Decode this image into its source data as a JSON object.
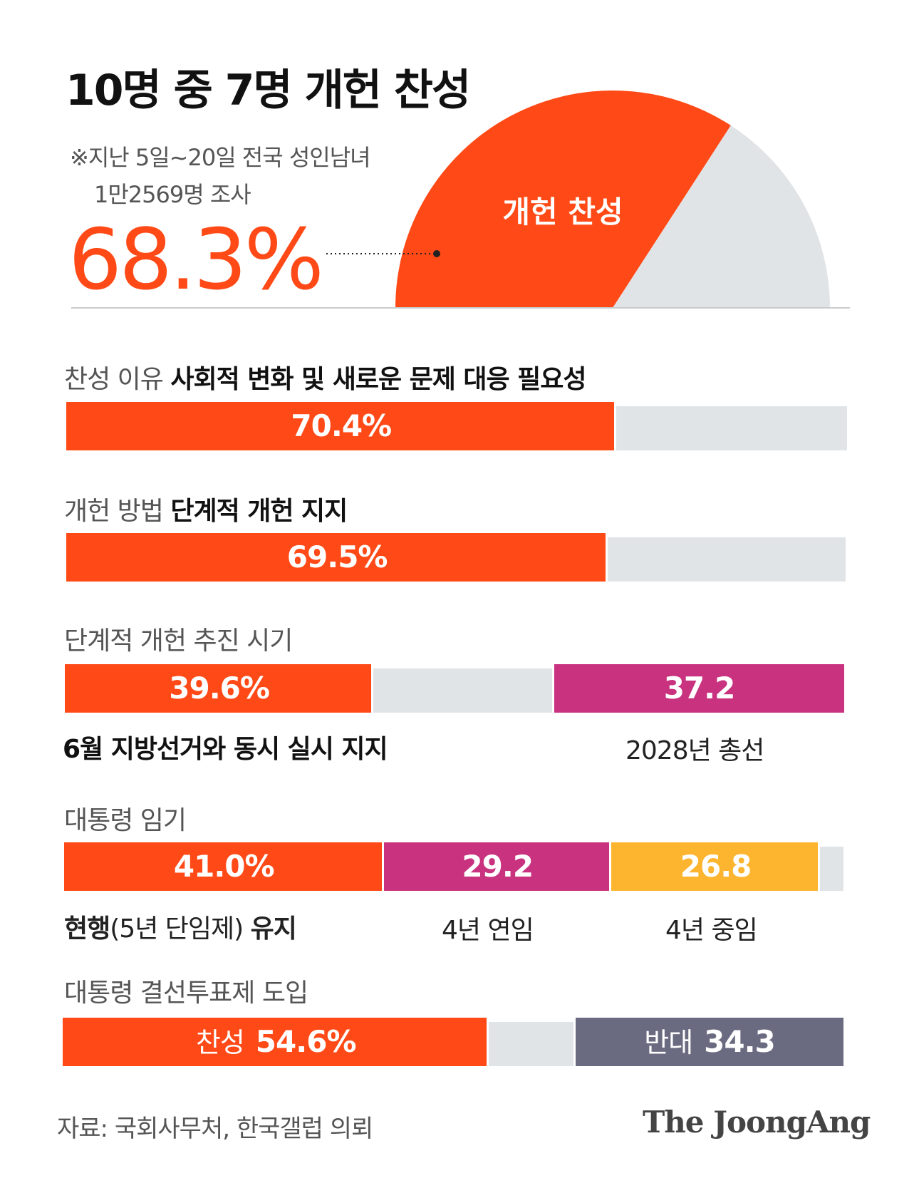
{
  "title": "10명 중 7명 개헌 찬성",
  "note_line1": "※지난 5일~20일 전국 성인남녀",
  "note_line2": "1만2569명 조사",
  "colors": {
    "orange": "#ff4a17",
    "gray": "#e1e4e7",
    "magenta": "#c8327f",
    "yellow": "#fdb52f",
    "slate": "#6a6b80"
  },
  "chart_data": [
    {
      "type": "pie",
      "subtype": "half-donut gauge",
      "title": "10명 중 7명 개헌 찬성",
      "slices": [
        {
          "label": "개헌 찬성",
          "value": 68.3,
          "display": "68.3%",
          "color": "#ff4a17"
        },
        {
          "label": "",
          "value": 31.7,
          "color": "#e1e4e7"
        }
      ]
    },
    {
      "type": "bar",
      "stacked": true,
      "orientation": "horizontal",
      "sections": [
        {
          "label_prefix": "찬성 이유",
          "label_bold": "사회적 변화 및 새로운 문제 대응 필요성",
          "segments": [
            {
              "value": 70.4,
              "display": "70.4%",
              "color": "#ff4a17",
              "caption": ""
            },
            {
              "value": 29.6,
              "display": "",
              "color": "#e1e4e7",
              "caption": ""
            }
          ]
        },
        {
          "label_prefix": "개헌 방법",
          "label_bold": "단계적 개헌 지지",
          "segments": [
            {
              "value": 69.5,
              "display": "69.5%",
              "color": "#ff4a17",
              "caption": ""
            },
            {
              "value": 30.5,
              "display": "",
              "color": "#e1e4e7",
              "caption": ""
            }
          ]
        },
        {
          "label_prefix": "단계적 개헌 추진 시기",
          "label_bold": "",
          "segments": [
            {
              "value": 39.6,
              "display": "39.6%",
              "color": "#ff4a17",
              "caption": "6월 지방선거와 동시 실시 지지",
              "caption_bold": true
            },
            {
              "value": 23.2,
              "display": "",
              "color": "#e1e4e7",
              "caption": ""
            },
            {
              "value": 37.2,
              "display": "37.2",
              "color": "#c8327f",
              "caption": "2028년 총선"
            }
          ]
        },
        {
          "label_prefix": "대통령 임기",
          "label_bold": "",
          "segments": [
            {
              "value": 41.0,
              "display": "41.0%",
              "color": "#ff4a17",
              "caption_bold_a": "현행",
              "caption": "(5년 단임제)",
              "caption_bold_b": "유지"
            },
            {
              "value": 29.2,
              "display": "29.2",
              "color": "#c8327f",
              "caption": "4년 연임"
            },
            {
              "value": 26.8,
              "display": "26.8",
              "color": "#fdb52f",
              "caption": "4년 중임"
            },
            {
              "value": 3.0,
              "display": "",
              "color": "#e1e4e7",
              "caption": ""
            }
          ]
        },
        {
          "label_prefix": "대통령 결선투표제 도입",
          "label_bold": "",
          "segments": [
            {
              "value": 54.6,
              "prefix": "찬성",
              "display": "54.6%",
              "color": "#ff4a17",
              "caption": ""
            },
            {
              "value": 11.1,
              "display": "",
              "color": "#e1e4e7",
              "caption": ""
            },
            {
              "value": 34.3,
              "prefix": "반대",
              "display": "34.3",
              "color": "#6a6b80",
              "caption": ""
            }
          ]
        }
      ]
    }
  ],
  "source": "자료: 국회사무처, 한국갤럽 의뢰",
  "brand": "The JoongAng"
}
